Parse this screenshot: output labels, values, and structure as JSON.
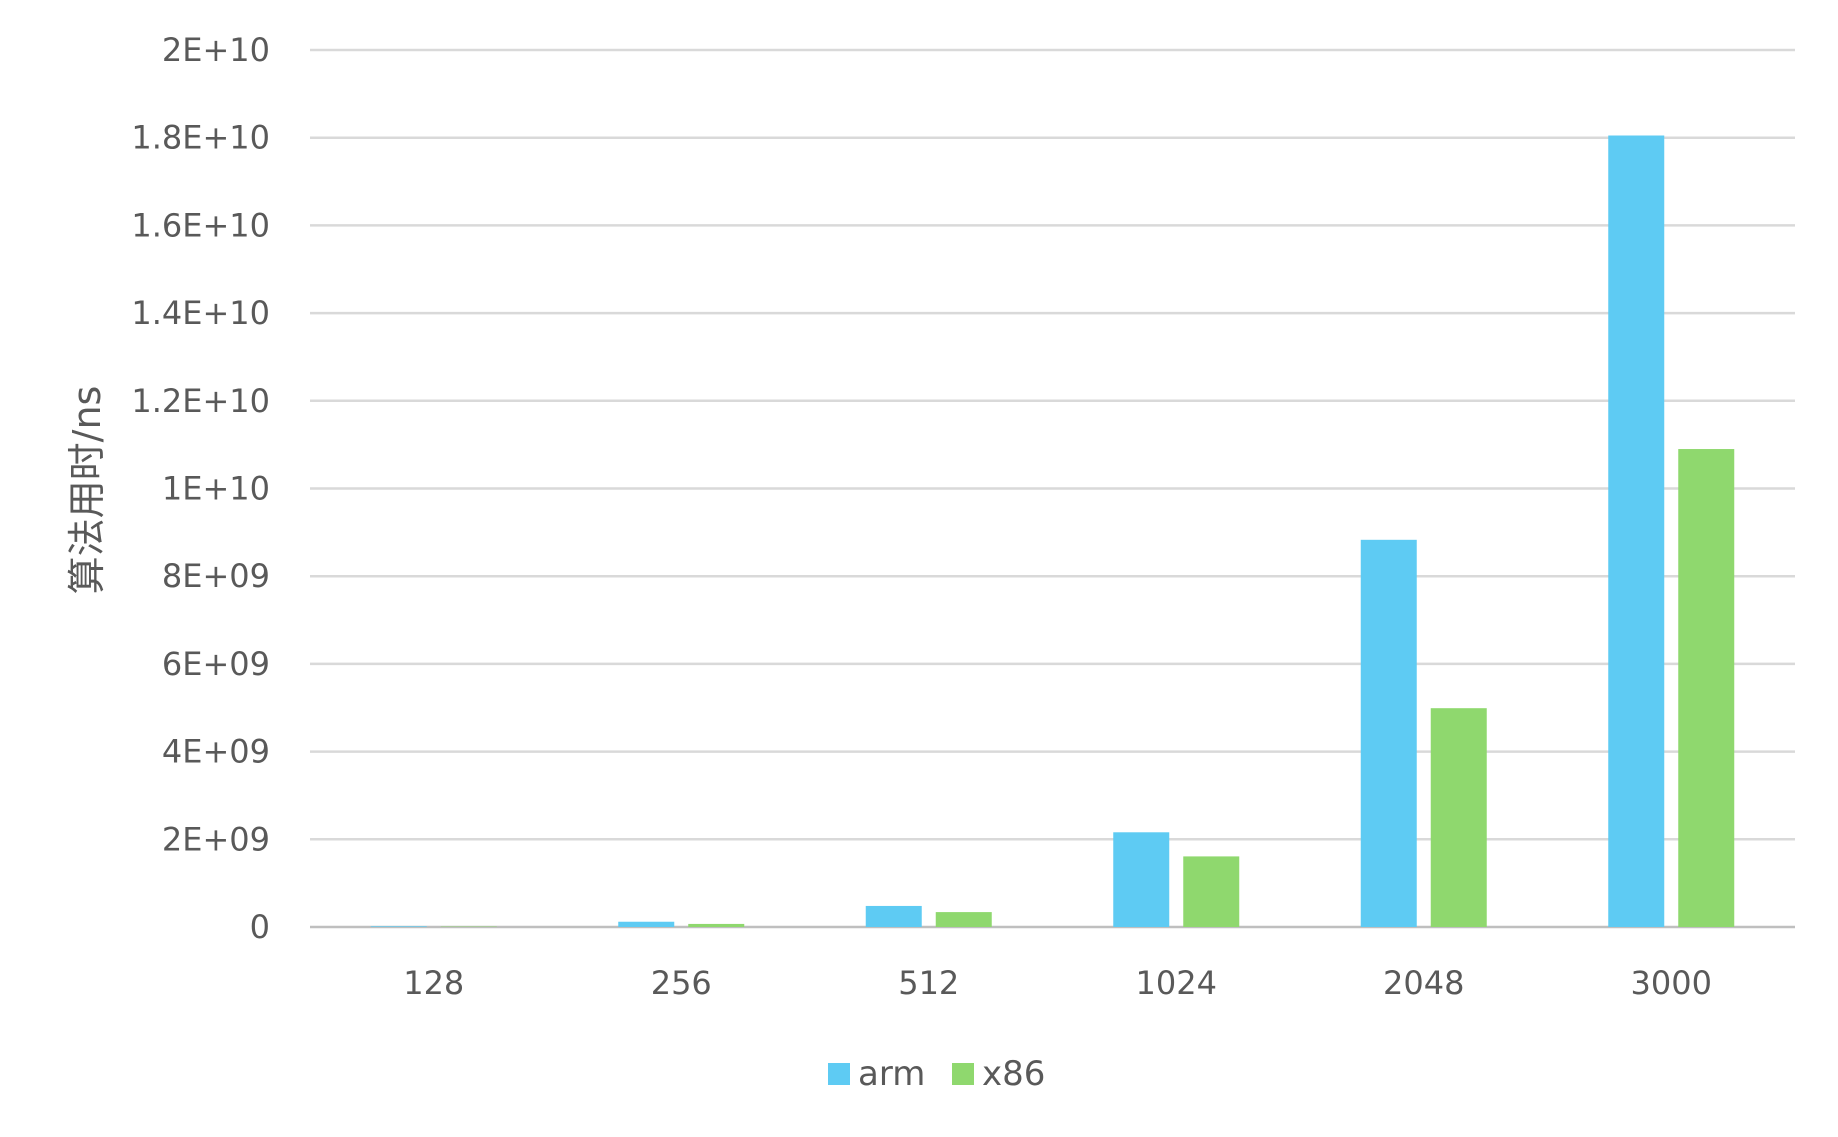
{
  "chart_data": {
    "type": "bar",
    "title": "",
    "xlabel": "",
    "ylabel": "算法用时/ns",
    "categories": [
      "128",
      "256",
      "512",
      "1024",
      "2048",
      "3000"
    ],
    "series": [
      {
        "name": "arm",
        "color": "#5ECBF3",
        "values": [
          15000000,
          120000000,
          480000000,
          2160000000,
          8830000000,
          18050000000
        ]
      },
      {
        "name": "x86",
        "color": "#8FD86E",
        "values": [
          9000000,
          70000000,
          340000000,
          1610000000,
          4990000000,
          10900000000
        ]
      }
    ],
    "ylim": [
      0,
      20000000000
    ],
    "y_ticks": [
      {
        "value": 0,
        "label": "0"
      },
      {
        "value": 2000000000,
        "label": "2E+09"
      },
      {
        "value": 4000000000,
        "label": "4E+09"
      },
      {
        "value": 6000000000,
        "label": "6E+09"
      },
      {
        "value": 8000000000,
        "label": "8E+09"
      },
      {
        "value": 10000000000,
        "label": "1E+10"
      },
      {
        "value": 12000000000,
        "label": "1.2E+10"
      },
      {
        "value": 14000000000,
        "label": "1.4E+10"
      },
      {
        "value": 16000000000,
        "label": "1.6E+10"
      },
      {
        "value": 18000000000,
        "label": "1.8E+10"
      },
      {
        "value": 20000000000,
        "label": "2E+10"
      }
    ],
    "grid": true,
    "legend_position": "bottom-center"
  }
}
